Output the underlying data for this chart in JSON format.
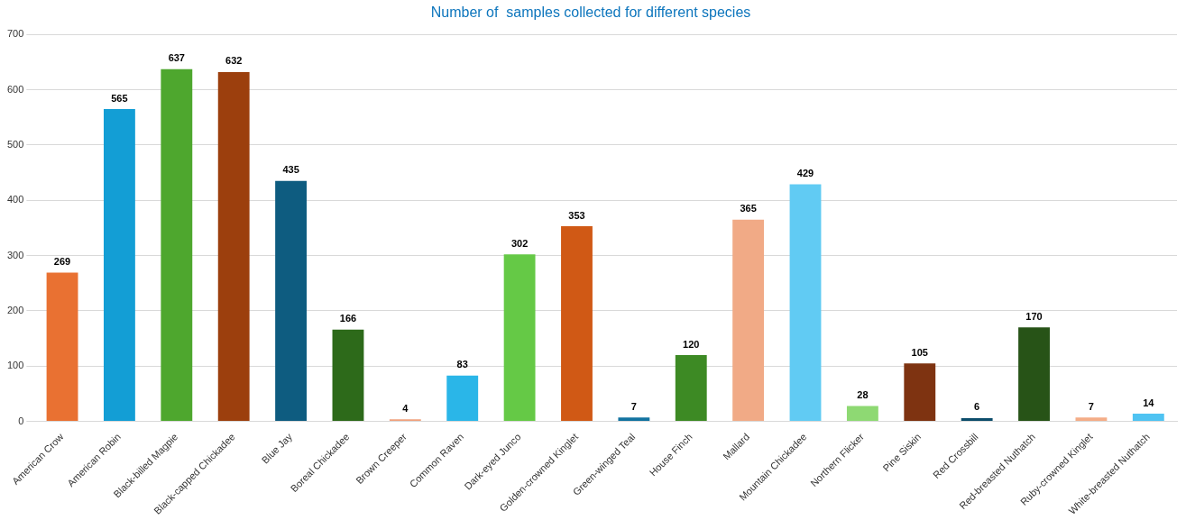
{
  "chart_data": {
    "type": "bar",
    "title": "Number of  samples collected for different species",
    "categories": [
      "American Crow",
      "American Robin",
      "Black-billed Magpie",
      "Black-capped Chickadee",
      "Blue Jay",
      "Boreal Chickadee",
      "Brown Creeper",
      "Common Raven",
      "Dark-eyed Junco",
      "Golden-crowned Kinglet",
      "Green-winged Teal",
      "House Finch",
      "Mallard",
      "Mountain Chickadee",
      "Northern Flicker",
      "Pine Siskin",
      "Red Crossbill",
      "Red-breasted Nuthatch",
      "Ruby-crowned Kinglet",
      "White-breasted Nuthatch"
    ],
    "values": [
      269,
      565,
      637,
      632,
      435,
      166,
      4,
      83,
      302,
      353,
      7,
      120,
      365,
      429,
      28,
      105,
      6,
      170,
      7,
      14
    ],
    "colors": [
      "#e97132",
      "#139ed5",
      "#4ea72e",
      "#9c3f0d",
      "#0e5c80",
      "#2d6a1a",
      "#f0a17c",
      "#2ab6e8",
      "#65c946",
      "#d05915",
      "#1273a0",
      "#3d8a24",
      "#f1aa86",
      "#61cbf3",
      "#8ed973",
      "#7e3311",
      "#0c4d6b",
      "#275317",
      "#f4ad87",
      "#4fc3f2"
    ],
    "ylim": [
      0,
      700
    ],
    "yticks": [
      0,
      100,
      200,
      300,
      400,
      500,
      600,
      700
    ],
    "grid": "y",
    "data_labels": true,
    "legend": false
  }
}
